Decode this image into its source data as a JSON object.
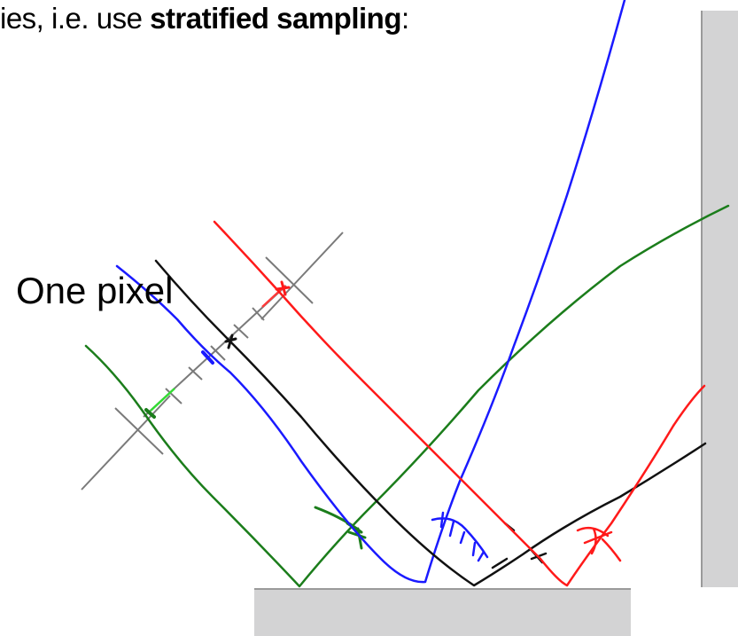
{
  "caption": {
    "prefix": "ies, i.e. use ",
    "emphasis": "stratified sampling",
    "suffix": ":"
  },
  "pixel_label": "One pixel",
  "colors": {
    "floor": "#d3d3d4",
    "wall": "#d3d3d4",
    "guide": "#7a7a7a",
    "green": "#1b7d1b",
    "blue": "#1a1aff",
    "black": "#111111",
    "red": "#ff1a1a",
    "bright_green": "#33dd33",
    "bright_red": "#ff3b3b"
  }
}
